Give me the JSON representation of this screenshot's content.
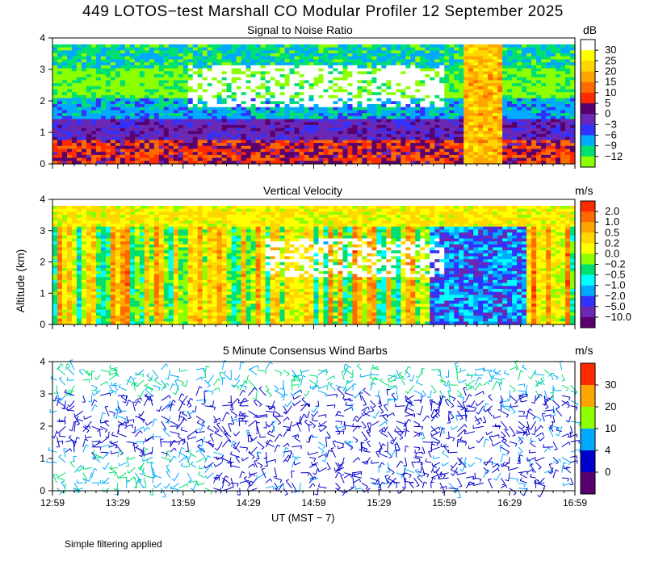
{
  "title": "449 LOTOS−test Marshall CO Modular Profiler 12 September 2025",
  "footnote": "Simple filtering applied",
  "shared_axes": {
    "ylabel": "Altitude (km)",
    "xlabel": "UT  (MST − 7)",
    "x_ticks": [
      "12:59",
      "13:29",
      "13:59",
      "14:29",
      "14:59",
      "15:29",
      "15:59",
      "16:29",
      "16:59"
    ],
    "y_ticks": [
      "0",
      "1",
      "2",
      "3",
      "4"
    ]
  },
  "chart_data": [
    {
      "type": "heatmap",
      "title": "Signal to Noise Ratio",
      "unit": "dB",
      "xlim": [
        "12:59",
        "16:59"
      ],
      "ylim": [
        0,
        4
      ],
      "colorbar_labels": [
        "30",
        "25",
        "20",
        "15",
        "10",
        "5",
        "0",
        "−3",
        "−6",
        "−9",
        "−12"
      ],
      "colorbar_colors": [
        "#ffffff",
        "#ffff00",
        "#ffd700",
        "#ffa500",
        "#ff6a00",
        "#ff2a00",
        "#5a006e",
        "#6a28b4",
        "#3232ff",
        "#00aaff",
        "#00e070",
        "#8cff00"
      ]
    },
    {
      "type": "heatmap",
      "title": "Vertical Velocity",
      "unit": "m/s",
      "xlim": [
        "12:59",
        "16:59"
      ],
      "ylim": [
        0,
        4
      ],
      "colorbar_labels": [
        "2.0",
        "1.0",
        "0.5",
        "0.2",
        "0.0",
        "−0.2",
        "−0.5",
        "−1.0",
        "−2.0",
        "−5.0",
        "−10.0"
      ],
      "colorbar_colors": [
        "#ff2a00",
        "#ff6a00",
        "#ffa500",
        "#ffd700",
        "#ffff00",
        "#8cff00",
        "#00e070",
        "#00ffff",
        "#00aaff",
        "#3232ff",
        "#6a28b4",
        "#5a006e"
      ]
    },
    {
      "type": "scatter",
      "title": "5 Minute Consensus Wind Barbs",
      "unit": "m/s",
      "xlim": [
        "12:59",
        "16:59"
      ],
      "ylim": [
        0,
        4
      ],
      "colorbar_labels": [
        "30",
        "20",
        "10",
        "4",
        "0"
      ],
      "colorbar_colors": [
        "#ff2a00",
        "#ffa500",
        "#8cff00",
        "#00aaff",
        "#0000cc",
        "#5a006e"
      ]
    }
  ]
}
